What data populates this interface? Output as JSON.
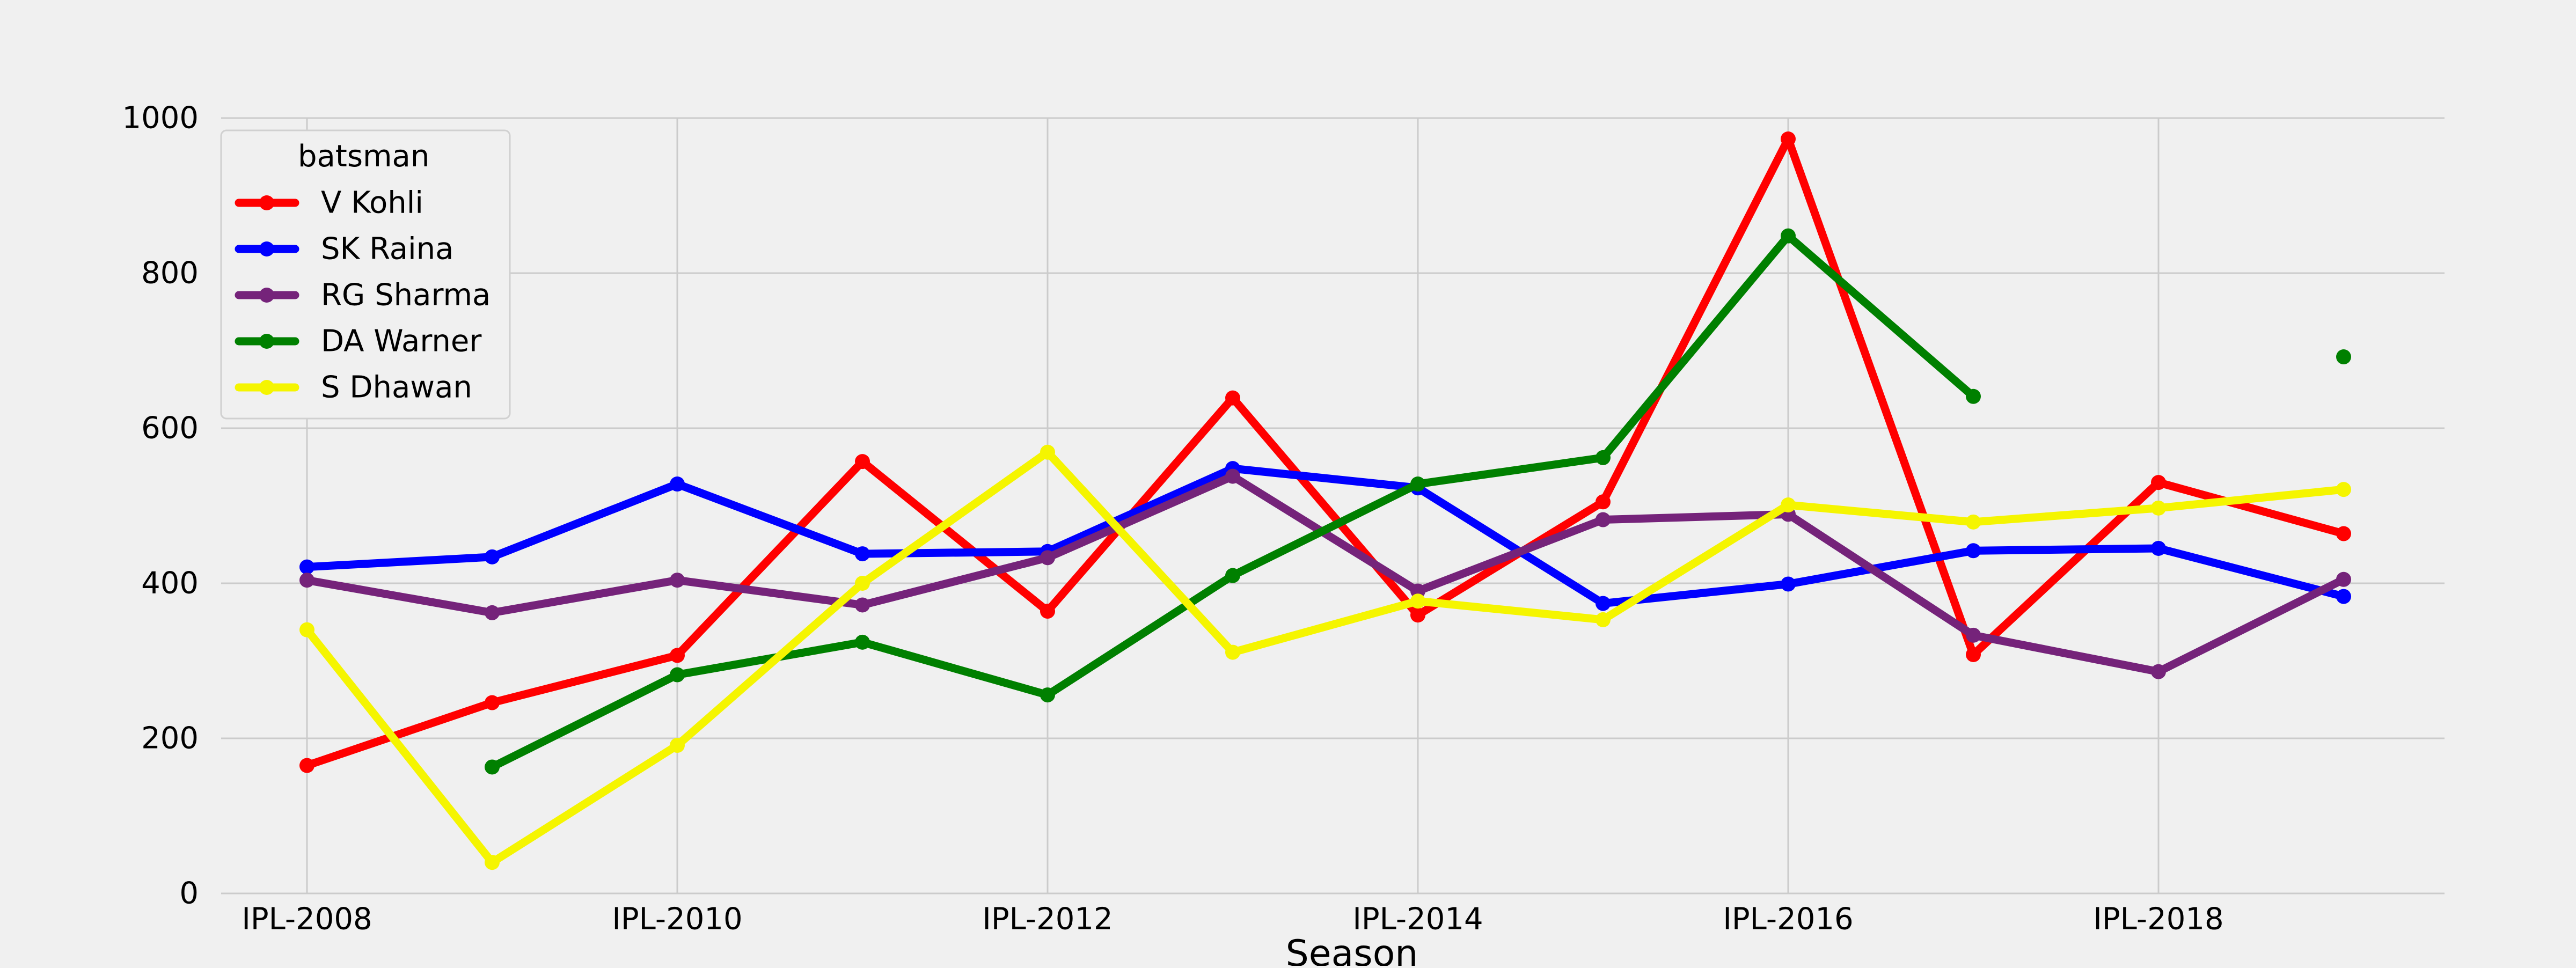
{
  "chart_data": {
    "type": "line",
    "title": "",
    "xlabel": "Season",
    "ylabel": "",
    "categories": [
      "IPL-2008",
      "IPL-2009",
      "IPL-2010",
      "IPL-2011",
      "IPL-2012",
      "IPL-2013",
      "IPL-2014",
      "IPL-2015",
      "IPL-2016",
      "IPL-2017",
      "IPL-2018",
      "IPL-2019"
    ],
    "xtick_labels": [
      "IPL-2008",
      "IPL-2010",
      "IPL-2012",
      "IPL-2014",
      "IPL-2016",
      "IPL-2018"
    ],
    "ylim": [
      0,
      1000
    ],
    "yticks": [
      0,
      200,
      400,
      600,
      800,
      1000
    ],
    "grid": true,
    "legend": {
      "title": "batsman",
      "placement": "top-left"
    },
    "series": [
      {
        "name": "V Kohli",
        "color": "#ff0000",
        "values": [
          165,
          246,
          307,
          557,
          364,
          639,
          359,
          505,
          973,
          308,
          530,
          464
        ]
      },
      {
        "name": "SK Raina",
        "color": "#0000ff",
        "values": [
          421,
          434,
          528,
          438,
          441,
          548,
          523,
          374,
          399,
          442,
          445,
          383
        ]
      },
      {
        "name": "RG Sharma",
        "color": "#75237a",
        "values": [
          404,
          362,
          404,
          372,
          433,
          538,
          390,
          482,
          489,
          333,
          286,
          405
        ]
      },
      {
        "name": "DA Warner",
        "color": "#008000",
        "values": [
          null,
          163,
          282,
          324,
          256,
          410,
          528,
          562,
          848,
          641,
          null,
          692
        ]
      },
      {
        "name": "S Dhawan",
        "color": "#f5f500",
        "values": [
          340,
          40,
          191,
          400,
          569,
          311,
          377,
          353,
          501,
          479,
          497,
          521
        ]
      }
    ]
  }
}
